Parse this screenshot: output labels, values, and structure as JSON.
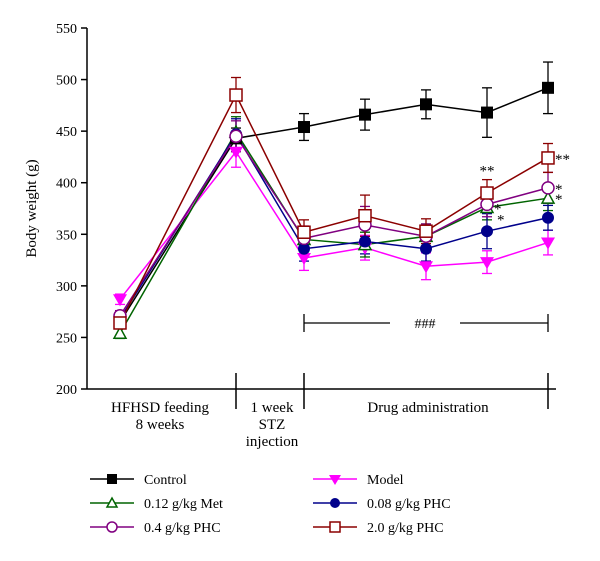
{
  "chart_data": {
    "type": "line",
    "title": "",
    "xlabel": "",
    "ylabel": "Body weight (g)",
    "ylim": [
      200,
      550
    ],
    "yticks": [
      200,
      250,
      300,
      350,
      400,
      450,
      500,
      550
    ],
    "grid": false,
    "legend_position": "bottom",
    "phases": [
      {
        "label": "HFHSD feeding 8 weeks",
        "lines": [
          "HFHSD feeding",
          "8 weeks"
        ]
      },
      {
        "label": "1 week STZ injection",
        "lines": [
          "1 week",
          "STZ",
          "injection"
        ]
      },
      {
        "label": "Drug administration",
        "lines": [
          "Drug administration"
        ]
      }
    ],
    "significance_bracket": "###",
    "series": [
      {
        "name": "Control",
        "marker": "square-filled",
        "color": "#000000",
        "points": [
          [
            0,
            265
          ],
          [
            1,
            443
          ],
          [
            2,
            454
          ],
          [
            3,
            466
          ],
          [
            4,
            476
          ],
          [
            5,
            468
          ],
          [
            6,
            492
          ]
        ],
        "err": [
          5,
          10,
          13,
          15,
          14,
          24,
          25
        ]
      },
      {
        "name": "Model",
        "marker": "triangle-down-filled",
        "color": "#ff00ff",
        "points": [
          [
            0,
            287
          ],
          [
            1,
            430
          ],
          [
            2,
            327
          ],
          [
            3,
            337
          ],
          [
            4,
            319
          ],
          [
            5,
            323
          ],
          [
            6,
            342
          ]
        ],
        "err": [
          5,
          15,
          12,
          12,
          13,
          11,
          12
        ]
      },
      {
        "name": "0.12 g/kg Met",
        "marker": "triangle-up-open",
        "color": "#006400",
        "points": [
          [
            0,
            254
          ],
          [
            1,
            449
          ],
          [
            2,
            345
          ],
          [
            3,
            340
          ],
          [
            4,
            348
          ],
          [
            5,
            376
          ],
          [
            6,
            385
          ]
        ],
        "err": [
          5,
          15,
          12,
          12,
          12,
          12,
          12
        ]
      },
      {
        "name": "0.08 g/kg PHC",
        "marker": "circle-filled",
        "color": "#00008b",
        "points": [
          [
            0,
            268
          ],
          [
            1,
            447
          ],
          [
            2,
            336
          ],
          [
            3,
            343
          ],
          [
            4,
            336
          ],
          [
            5,
            353
          ],
          [
            6,
            366
          ]
        ],
        "err": [
          5,
          15,
          12,
          12,
          12,
          17,
          12
        ]
      },
      {
        "name": "0.4 g/kg PHC",
        "marker": "circle-open",
        "color": "#800080",
        "points": [
          [
            0,
            271
          ],
          [
            1,
            445
          ],
          [
            2,
            346
          ],
          [
            3,
            359
          ],
          [
            4,
            348
          ],
          [
            5,
            379
          ],
          [
            6,
            395
          ]
        ],
        "err": [
          5,
          15,
          12,
          18,
          12,
          12,
          15
        ]
      },
      {
        "name": "2.0 g/kg PHC",
        "marker": "square-open",
        "color": "#8b0000",
        "points": [
          [
            0,
            264
          ],
          [
            1,
            485
          ],
          [
            2,
            352
          ],
          [
            3,
            368
          ],
          [
            4,
            353
          ],
          [
            5,
            390
          ],
          [
            6,
            424
          ]
        ],
        "err": [
          5,
          17,
          12,
          20,
          12,
          13,
          14
        ]
      }
    ],
    "annotations": [
      {
        "text": "**",
        "series": "2.0 g/kg PHC",
        "point": 5,
        "pos": "above"
      },
      {
        "text": "*",
        "series": "0.12 g/kg Met",
        "point": 5,
        "pos": "right"
      },
      {
        "text": "*",
        "series": "0.4 g/kg PHC",
        "point": 5,
        "pos": "below-right"
      },
      {
        "text": "**",
        "series": "2.0 g/kg PHC",
        "point": 6,
        "pos": "right"
      },
      {
        "text": "*",
        "series": "0.4 g/kg PHC",
        "point": 6,
        "pos": "right"
      },
      {
        "text": "*",
        "series": "0.12 g/kg Met",
        "point": 6,
        "pos": "right"
      }
    ]
  }
}
